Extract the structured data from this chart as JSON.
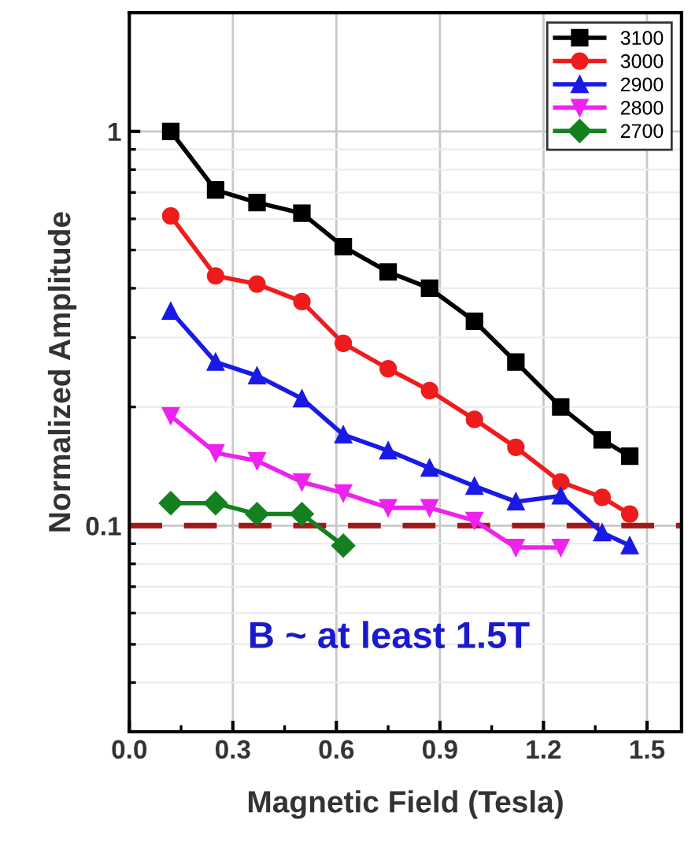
{
  "chart_data": {
    "type": "line",
    "xlabel": "Magnetic Field (Tesla)",
    "ylabel": "Normalized Amplitude",
    "x": [
      0.12,
      0.25,
      0.37,
      0.5,
      0.62,
      0.75,
      0.87,
      1.0,
      1.12,
      1.25,
      1.37,
      1.45
    ],
    "series": [
      {
        "name": "3100",
        "color": "#000000",
        "marker": "square",
        "values": [
          1.0,
          0.71,
          0.66,
          0.62,
          0.51,
          0.44,
          0.4,
          0.33,
          0.26,
          0.2,
          0.165,
          0.15
        ]
      },
      {
        "name": "3000",
        "color": "#ee1c1c",
        "marker": "circle",
        "values": [
          0.61,
          0.43,
          0.41,
          0.37,
          0.29,
          0.25,
          0.22,
          0.186,
          0.158,
          0.129,
          0.118,
          0.107
        ]
      },
      {
        "name": "2900",
        "color": "#1a1ae6",
        "marker": "triangle",
        "values": [
          0.35,
          0.26,
          0.24,
          0.21,
          0.17,
          0.155,
          0.14,
          0.126,
          0.115,
          0.119,
          0.096,
          0.089
        ]
      },
      {
        "name": "2800",
        "color": "#ee22ee",
        "marker": "triangle_down",
        "values": [
          0.19,
          0.153,
          0.146,
          0.129,
          0.121,
          0.111,
          0.111,
          0.103,
          0.088,
          0.088,
          null,
          null
        ]
      },
      {
        "name": "2700",
        "color": "#15801f",
        "marker": "diamond",
        "values": [
          0.114,
          0.114,
          0.107,
          0.107,
          0.089,
          null,
          null,
          null,
          null,
          null,
          null,
          null
        ]
      }
    ],
    "xlim": [
      0,
      1.6
    ],
    "xticks": [
      {
        "value": 0,
        "label": "0.0"
      },
      0.3,
      0.6,
      0.9,
      1.2,
      1.5
    ],
    "ylim": [
      0.03,
      2
    ],
    "yticks": [
      0.1,
      1
    ],
    "log": "y",
    "grid": true,
    "legend": "top right",
    "line_style": "solid",
    "ref_lines": [
      {
        "axis": "y",
        "value": 0.1,
        "color": "#a01818",
        "line_style": "dashed"
      }
    ],
    "annotations": [
      "B ~ at least 1.5T"
    ]
  }
}
